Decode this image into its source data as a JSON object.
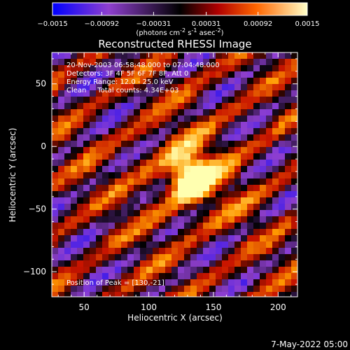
{
  "chart_data": {
    "type": "heatmap",
    "title": "Reconstructed RHESSI Image",
    "xlabel": "Heliocentric X (arcsec)",
    "ylabel": "Heliocentric Y (arcsec)",
    "xlim": [
      25,
      215
    ],
    "ylim": [
      -120,
      75
    ],
    "xticks": [
      50,
      100,
      150,
      200
    ],
    "yticks": [
      50,
      0,
      -50,
      -100
    ],
    "colorbar": {
      "range": [
        -0.0015,
        0.0015
      ],
      "tick_labels": [
        "-0.0015",
        "-0.00092",
        "-0.00031",
        "0.00031",
        "0.00092",
        "0.0015"
      ],
      "unit_main": "(photons cm",
      "unit_sup1": "-2",
      "unit_s": " s",
      "unit_sup2": "-1",
      "unit_asec": " asec",
      "unit_sup3": "-2",
      "unit_close": ")"
    },
    "annotations": {
      "time": "20-Nov-2003 06:58:48.000 to 07:04:48.000",
      "detectors": "Detectors: 3F 4F 5F 6F 7F 8F, Att 0",
      "energy": "Energy Range: 12.0 - 25.0 keV",
      "clean": "Clean     Total counts: 4.34E+03",
      "peak": "Position of Peak = [130,-21]"
    },
    "peak": [
      130,
      -21
    ],
    "stripe_angle_deg": 55,
    "colors": [
      "#0000ff",
      "#8f3fcf",
      "#000000",
      "#c81400",
      "#ff9a00",
      "#ffffb0"
    ]
  },
  "footer": {
    "date": "7-May-2022 05:00"
  }
}
